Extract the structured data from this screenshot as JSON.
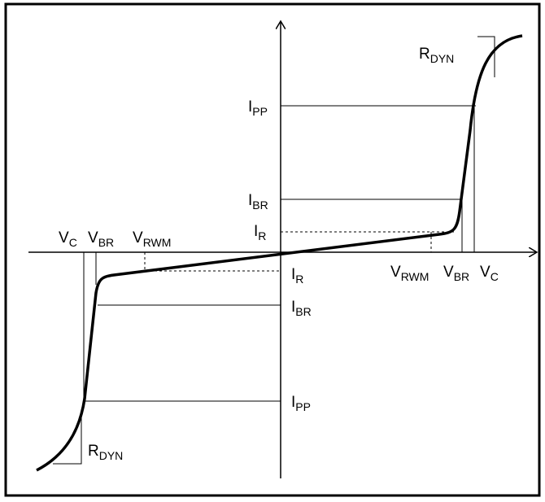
{
  "labels": [
    {
      "main": "I",
      "sub": "PP"
    },
    {
      "main": "I",
      "sub": "BR"
    },
    {
      "main": "I",
      "sub": "R"
    },
    {
      "main": "V",
      "sub": "C"
    },
    {
      "main": "V",
      "sub": "BR"
    },
    {
      "main": "V",
      "sub": "RWM"
    },
    {
      "main": "I",
      "sub": "R"
    },
    {
      "main": "V",
      "sub": "RWM"
    },
    {
      "main": "V",
      "sub": "BR"
    },
    {
      "main": "V",
      "sub": "C"
    },
    {
      "main": "I",
      "sub": "BR"
    },
    {
      "main": "I",
      "sub": "PP"
    },
    {
      "main": "R",
      "sub": "DYN"
    },
    {
      "main": "R",
      "sub": "DYN"
    }
  ]
}
